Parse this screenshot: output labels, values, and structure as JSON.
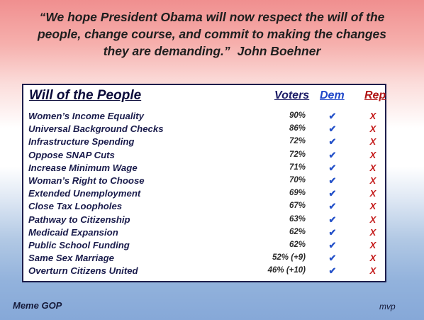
{
  "quote": {
    "lines": [
      "“We hope President Obama will now respect the will of the",
      "people, change course, and commit to making the changes",
      "they are demanding.”"
    ],
    "attribution": "John Boehner"
  },
  "table": {
    "title": "Will of the People",
    "col_voters": "Voters",
    "col_dem": "Dem",
    "col_rep": "Rep",
    "dem_mark": "✔",
    "rep_mark": "X",
    "rows": [
      {
        "issue": "Women’s Income Equality",
        "voters": "90%"
      },
      {
        "issue": "Universal Background Checks",
        "voters": "86%"
      },
      {
        "issue": "Infrastructure Spending",
        "voters": "72%"
      },
      {
        "issue": "Oppose SNAP Cuts",
        "voters": "72%"
      },
      {
        "issue": "Increase Minimum Wage",
        "voters": "71%"
      },
      {
        "issue": "Woman’s Right to Choose",
        "voters": "70%"
      },
      {
        "issue": "Extended Unemployment",
        "voters": "69%"
      },
      {
        "issue": "Close Tax Loopholes",
        "voters": "67%"
      },
      {
        "issue": "Pathway to Citizenship",
        "voters": "63%"
      },
      {
        "issue": "Medicaid Expansion",
        "voters": "62%"
      },
      {
        "issue": "Public School Funding",
        "voters": "62%"
      },
      {
        "issue": "Same Sex Marriage",
        "voters": "52% (+9)"
      },
      {
        "issue": "Overturn Citizens United",
        "voters": "46% (+10)"
      }
    ]
  },
  "footer": {
    "left": "Meme GOP",
    "right": "mvp"
  },
  "colors": {
    "top_band": "#f08f8f",
    "bottom_band": "#86a8d8",
    "dem_blue": "#2451c9",
    "rep_red": "#c41a1a"
  }
}
